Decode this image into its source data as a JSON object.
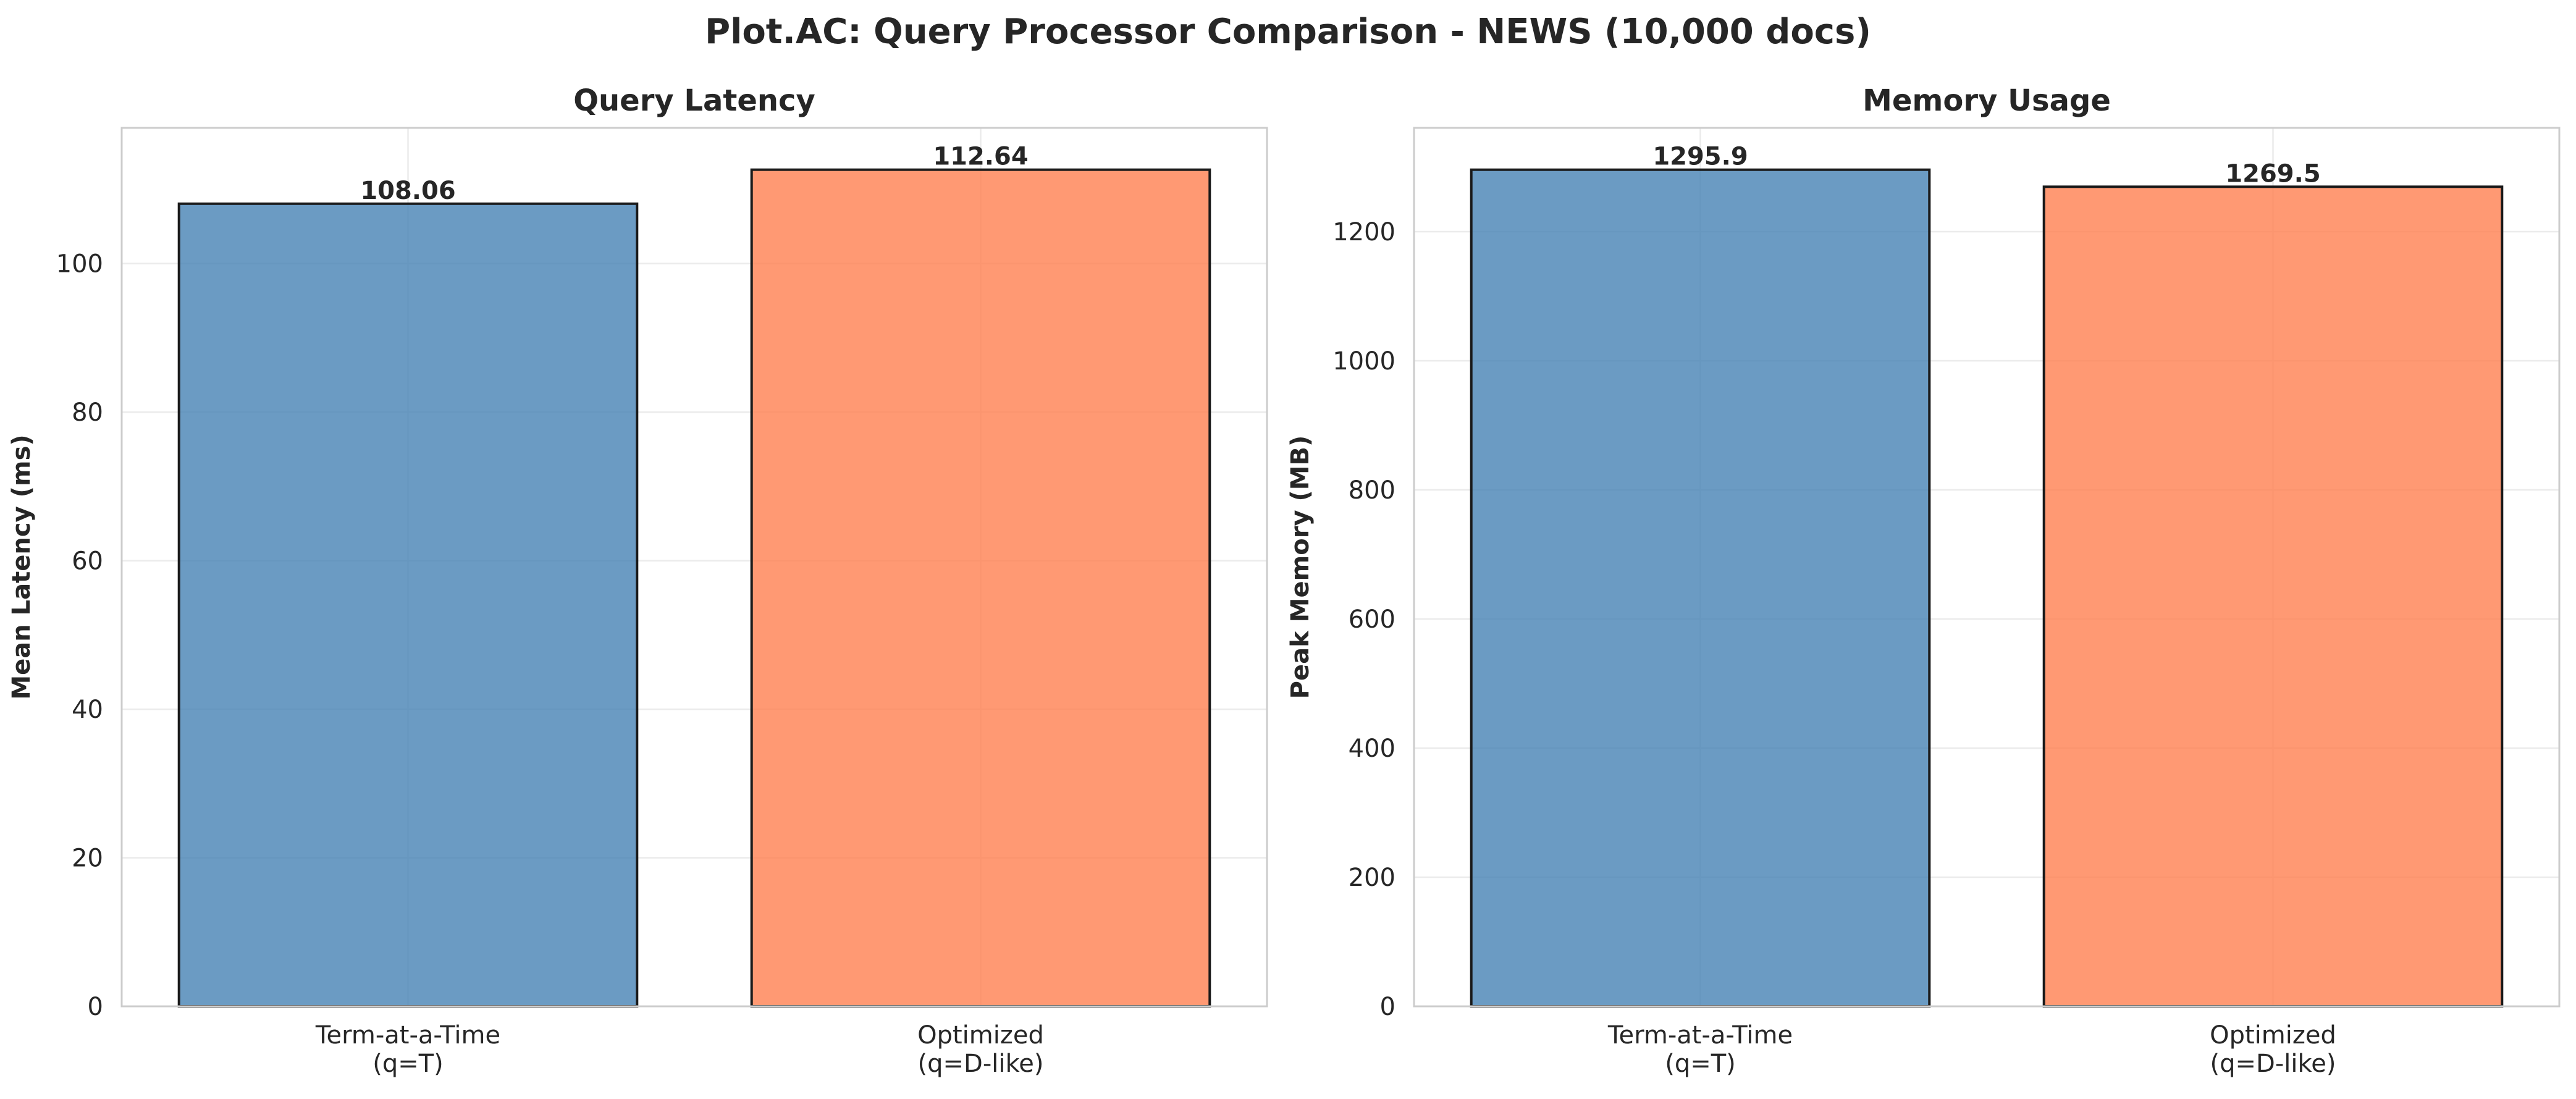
{
  "figure": {
    "suptitle": "Plot.AC: Query Processor Comparison - NEWS (10,000 docs)"
  },
  "chart_data": [
    {
      "type": "bar",
      "title": "Query Latency",
      "xlabel": "",
      "ylabel": "Mean Latency (ms)",
      "categories": [
        "Term-at-a-Time\n(q=T)",
        "Optimized\n(q=D-like)"
      ],
      "values": [
        108.06,
        112.64
      ],
      "value_labels": [
        "108.06",
        "112.64"
      ],
      "bar_colors": [
        "#4682b4",
        "#ff7f50"
      ],
      "ylim": [
        0,
        118.27
      ],
      "yticks": [
        0,
        20,
        40,
        60,
        80,
        100
      ],
      "ytick_labels": [
        "0",
        "20",
        "40",
        "60",
        "80",
        "100"
      ],
      "grid": true
    },
    {
      "type": "bar",
      "title": "Memory Usage",
      "xlabel": "",
      "ylabel": "Peak Memory (MB)",
      "categories": [
        "Term-at-a-Time\n(q=T)",
        "Optimized\n(q=D-like)"
      ],
      "values": [
        1295.9,
        1269.5
      ],
      "value_labels": [
        "1295.9",
        "1269.5"
      ],
      "bar_colors": [
        "#4682b4",
        "#ff7f50"
      ],
      "ylim": [
        0,
        1360.7
      ],
      "yticks": [
        0,
        200,
        400,
        600,
        800,
        1000,
        1200
      ],
      "ytick_labels": [
        "0",
        "200",
        "400",
        "600",
        "800",
        "1000",
        "1200"
      ],
      "grid": true
    }
  ]
}
